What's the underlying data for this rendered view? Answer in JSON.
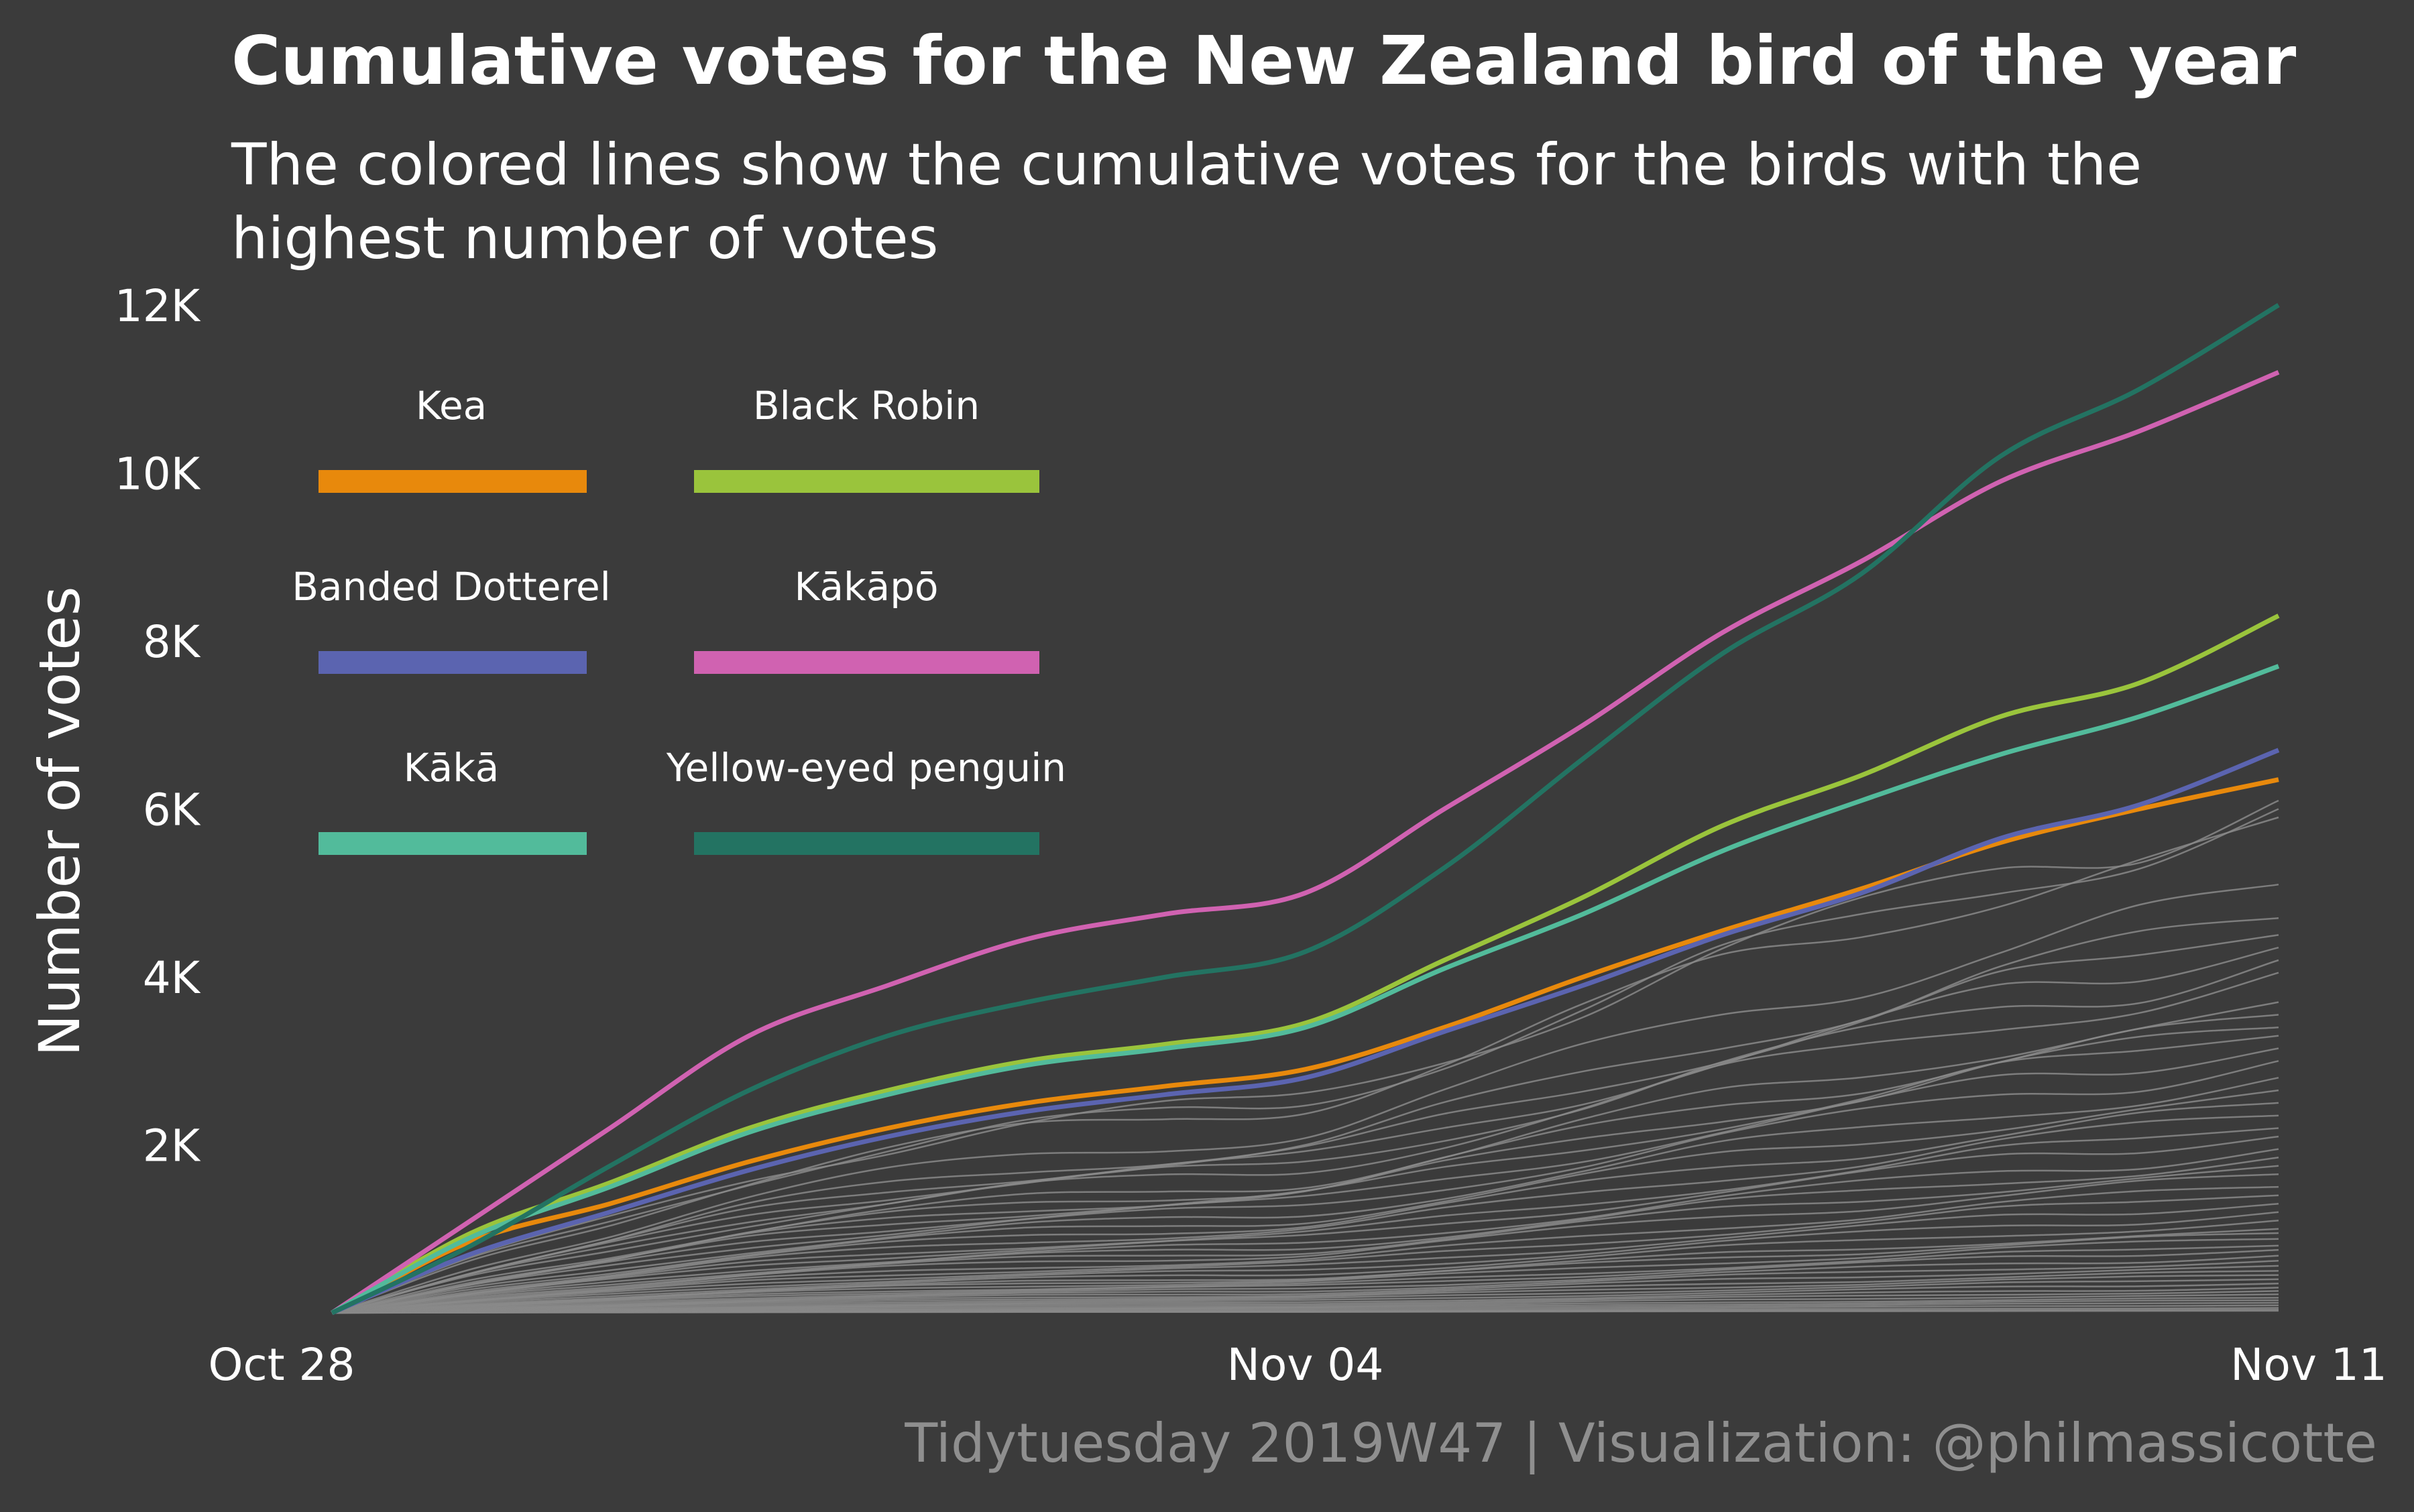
{
  "chart_data": {
    "type": "line",
    "title": "Cumulative votes for the New Zealand bird of the year",
    "subtitle": [
      "The colored lines show the cumulative votes for the birds with the",
      "highest number of votes"
    ],
    "xlabel": "",
    "ylabel": "Number of votes",
    "caption": "Tidytuesday 2019W47 | Visualization: @philmassicotte",
    "x_ticks": [
      "Oct 28",
      "Nov 04",
      "Nov 11"
    ],
    "y_ticks": [
      {
        "value": 2000,
        "label": "2K"
      },
      {
        "value": 4000,
        "label": "4K"
      },
      {
        "value": 6000,
        "label": "6K"
      },
      {
        "value": 8000,
        "label": "8K"
      },
      {
        "value": 10000,
        "label": "10K"
      },
      {
        "value": 12000,
        "label": "12K"
      }
    ],
    "xlim": [
      0,
      14
    ],
    "ylim": [
      0,
      12000
    ],
    "grid": false,
    "legend_position": "top-left",
    "x_unit": "days since Oct 28",
    "series": [
      {
        "name": "Kea",
        "color": "#e8890c",
        "x": [
          0,
          1,
          2,
          3,
          4,
          5,
          6,
          7,
          8,
          9,
          10,
          11,
          12,
          13,
          14
        ],
        "values": [
          0,
          850,
          1300,
          1800,
          2200,
          2500,
          2700,
          2900,
          3400,
          4000,
          4550,
          5050,
          5600,
          6000,
          6350
        ]
      },
      {
        "name": "Black Robin",
        "color": "#9ac43c",
        "x": [
          0,
          1,
          2,
          3,
          4,
          5,
          6,
          7,
          8,
          9,
          10,
          11,
          12,
          13,
          14
        ],
        "values": [
          0,
          950,
          1550,
          2200,
          2650,
          3000,
          3200,
          3450,
          4200,
          4950,
          5800,
          6400,
          7100,
          7500,
          8300
        ]
      },
      {
        "name": "Banded Dotterel",
        "color": "#5b64b0",
        "x": [
          0,
          1,
          2,
          3,
          4,
          5,
          6,
          7,
          8,
          9,
          10,
          11,
          12,
          13,
          14
        ],
        "values": [
          0,
          700,
          1200,
          1700,
          2100,
          2400,
          2600,
          2800,
          3350,
          3900,
          4500,
          5000,
          5650,
          6050,
          6700
        ]
      },
      {
        "name": "Kākāpō",
        "color": "#d062b1",
        "x": [
          0,
          1,
          2,
          3,
          4,
          5,
          6,
          7,
          8,
          9,
          10,
          11,
          12,
          13,
          14
        ],
        "values": [
          0,
          1100,
          2200,
          3300,
          3900,
          4450,
          4750,
          5000,
          6000,
          7000,
          8100,
          8950,
          9900,
          10500,
          11200
        ]
      },
      {
        "name": "Kākā",
        "color": "#52bb9b",
        "x": [
          0,
          1,
          2,
          3,
          4,
          5,
          6,
          7,
          8,
          9,
          10,
          11,
          12,
          13,
          14
        ],
        "values": [
          0,
          900,
          1500,
          2150,
          2600,
          2950,
          3150,
          3400,
          4100,
          4750,
          5500,
          6100,
          6650,
          7100,
          7700
        ]
      },
      {
        "name": "Yellow-eyed penguin",
        "color": "#237362",
        "x": [
          0,
          1,
          2,
          3,
          4,
          5,
          6,
          7,
          8,
          9,
          10,
          11,
          12,
          13,
          14
        ],
        "values": [
          0,
          800,
          1750,
          2650,
          3300,
          3700,
          4000,
          4300,
          5300,
          6600,
          7850,
          8800,
          10200,
          11000,
          12000
        ]
      }
    ],
    "background_series_color": "#8a8a8a",
    "background_series_finals": [
      6100,
      6000,
      5900,
      5100,
      4700,
      4500,
      4350,
      4200,
      4050,
      3700,
      3550,
      3400,
      3300,
      3150,
      3000,
      2800,
      2650,
      2500,
      2350,
      2200,
      2100,
      1950,
      1850,
      1750,
      1650,
      1500,
      1400,
      1300,
      1200,
      1100,
      1000,
      950,
      880,
      800,
      750,
      680,
      620,
      560,
      500,
      450,
      400,
      350,
      300,
      260,
      220,
      180,
      150,
      120,
      90,
      60,
      40,
      25
    ]
  }
}
